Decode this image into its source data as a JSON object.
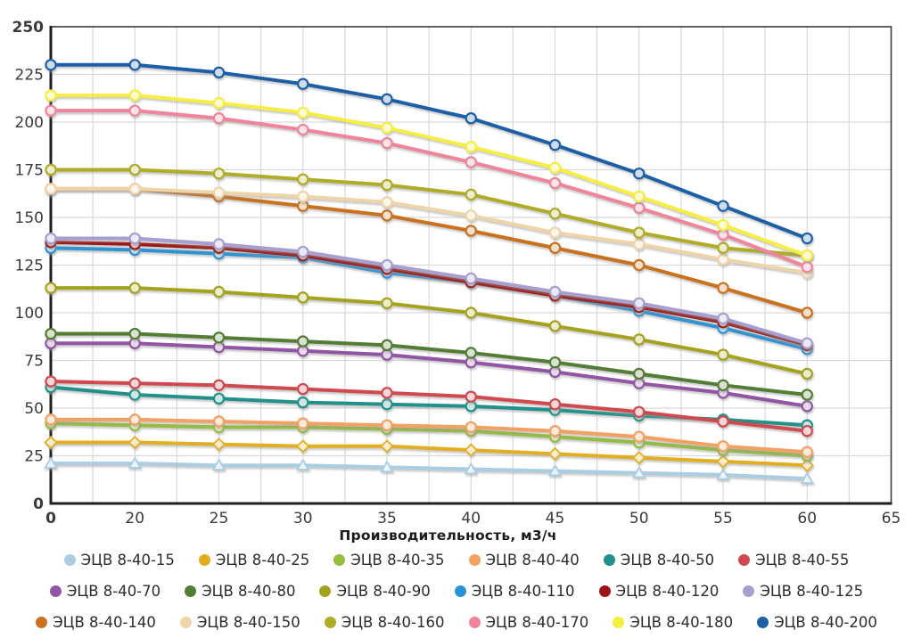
{
  "chart_data": {
    "type": "line",
    "title": "",
    "xlabel": "Производительность, м3/ч",
    "ylabel": "",
    "x_tick_labels": [
      "0",
      "20",
      "25",
      "30",
      "35",
      "40",
      "45",
      "50",
      "55",
      "60",
      "65"
    ],
    "y_tick_labels": [
      "0",
      "25",
      "50",
      "75",
      "100",
      "125",
      "150",
      "175",
      "200",
      "225",
      "250"
    ],
    "ylim": [
      0,
      250
    ],
    "xlim_categories": 11,
    "grid": true,
    "legend_position": "bottom",
    "categories": [
      0,
      20,
      25,
      30,
      35,
      40,
      45,
      50,
      55,
      60
    ],
    "series": [
      {
        "name": "ЭЦВ 8-40-15",
        "color": "#aacde4",
        "marker": "triangle",
        "values": [
          21,
          21,
          20,
          20,
          19,
          18,
          17,
          16,
          15,
          13
        ]
      },
      {
        "name": "ЭЦВ 8-40-25",
        "color": "#e2ae20",
        "marker": "diamond",
        "values": [
          32,
          32,
          31,
          30,
          30,
          28,
          26,
          24,
          22,
          20
        ]
      },
      {
        "name": "ЭЦВ 8-40-35",
        "color": "#95bd40",
        "marker": "circle",
        "values": [
          42,
          41,
          40,
          40,
          39,
          38,
          35,
          32,
          28,
          25
        ]
      },
      {
        "name": "ЭЦВ 8-40-40",
        "color": "#f2a162",
        "marker": "circle",
        "values": [
          44,
          44,
          43,
          42,
          41,
          40,
          38,
          35,
          30,
          27
        ]
      },
      {
        "name": "ЭЦВ 8-40-50",
        "color": "#22918b",
        "marker": "circle",
        "values": [
          61,
          57,
          55,
          53,
          52,
          51,
          49,
          46,
          44,
          41
        ]
      },
      {
        "name": "ЭЦВ 8-40-55",
        "color": "#cf4a50",
        "marker": "circle",
        "values": [
          64,
          63,
          62,
          60,
          58,
          56,
          52,
          48,
          43,
          38
        ]
      },
      {
        "name": "ЭЦВ 8-40-70",
        "color": "#9055a5",
        "marker": "circle",
        "values": [
          84,
          84,
          82,
          80,
          78,
          74,
          69,
          63,
          58,
          51
        ]
      },
      {
        "name": "ЭЦВ 8-40-80",
        "color": "#537d33",
        "marker": "circle",
        "values": [
          89,
          89,
          87,
          85,
          83,
          79,
          74,
          68,
          62,
          57
        ]
      },
      {
        "name": "ЭЦВ 8-40-90",
        "color": "#a5a21c",
        "marker": "circle",
        "values": [
          113,
          113,
          111,
          108,
          105,
          100,
          93,
          86,
          78,
          68
        ]
      },
      {
        "name": "ЭЦВ 8-40-110",
        "color": "#2a93d6",
        "marker": "circle",
        "values": [
          134,
          133,
          131,
          129,
          121,
          116,
          109,
          101,
          92,
          81
        ]
      },
      {
        "name": "ЭЦВ 8-40-120",
        "color": "#9c1318",
        "marker": "circle",
        "values": [
          137,
          136,
          134,
          130,
          123,
          116,
          109,
          103,
          95,
          83
        ]
      },
      {
        "name": "ЭЦВ 8-40-125",
        "color": "#a79fcf",
        "marker": "circle",
        "values": [
          139,
          139,
          136,
          132,
          125,
          118,
          111,
          105,
          97,
          84
        ]
      },
      {
        "name": "ЭЦВ 8-40-140",
        "color": "#c9711f",
        "marker": "circle",
        "values": [
          165,
          165,
          161,
          156,
          151,
          143,
          134,
          125,
          113,
          100
        ]
      },
      {
        "name": "ЭЦВ 8-40-150",
        "color": "#efd4a8",
        "marker": "circle",
        "values": [
          165,
          165,
          163,
          161,
          158,
          151,
          142,
          136,
          128,
          121
        ]
      },
      {
        "name": "ЭЦВ 8-40-160",
        "color": "#b0ac28",
        "marker": "circle",
        "values": [
          175,
          175,
          173,
          170,
          167,
          162,
          152,
          142,
          134,
          130
        ]
      },
      {
        "name": "ЭЦВ 8-40-170",
        "color": "#f0849b",
        "marker": "circle",
        "values": [
          206,
          206,
          202,
          196,
          189,
          179,
          168,
          155,
          141,
          124
        ]
      },
      {
        "name": "ЭЦВ 8-40-180",
        "color": "#f6ee3f",
        "marker": "circle",
        "values": [
          214,
          214,
          210,
          205,
          197,
          187,
          176,
          161,
          146,
          130
        ]
      },
      {
        "name": "ЭЦВ 8-40-200",
        "color": "#1f5fa6",
        "marker": "circle",
        "values": [
          230,
          230,
          226,
          220,
          212,
          202,
          188,
          173,
          156,
          139
        ]
      }
    ]
  },
  "colors": {
    "background": "#ffffff",
    "grid": "#d9d9d9",
    "axis_box": "#3a3a3a",
    "axis_main": "#1f1f1f",
    "tick_text": "#3a3a3a",
    "legend_text": "#2d2d2d"
  }
}
